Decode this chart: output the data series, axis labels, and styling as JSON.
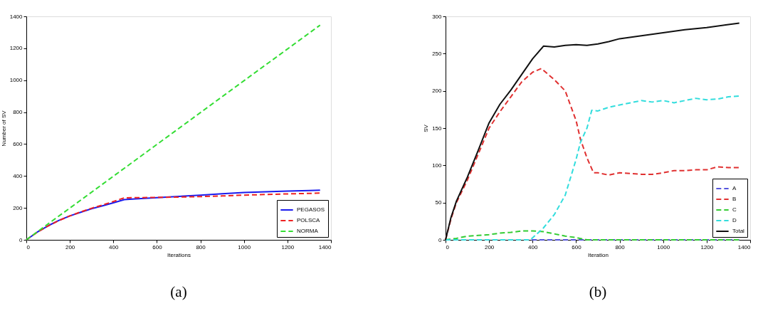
{
  "chart_data": [
    {
      "type": "line",
      "xlabel": "Iterations",
      "ylabel": "Number of SV",
      "annotations": [
        "(a)"
      ],
      "xlim": [
        0,
        1400
      ],
      "ylim": [
        0,
        1400
      ],
      "xticks": [
        0,
        200,
        400,
        600,
        800,
        1000,
        1200,
        1400
      ],
      "yticks": [
        0,
        200,
        400,
        600,
        800,
        1000,
        1200,
        1400
      ],
      "grid": false,
      "legend": "bottom right",
      "series": [
        {
          "name": "PEGASOS",
          "color": "#1a1aee",
          "line_style": "solid",
          "x": [
            0,
            50,
            100,
            150,
            200,
            250,
            300,
            350,
            400,
            450,
            500,
            600,
            700,
            800,
            900,
            1000,
            1100,
            1200,
            1300,
            1350
          ],
          "values": [
            0,
            48,
            88,
            122,
            150,
            173,
            195,
            213,
            232,
            252,
            256,
            264,
            272,
            280,
            289,
            296,
            301,
            305,
            309,
            311
          ]
        },
        {
          "name": "POLSCA",
          "color": "#ee2222",
          "line_style": "dashed",
          "x": [
            0,
            50,
            100,
            150,
            200,
            250,
            300,
            350,
            400,
            450,
            500,
            600,
            700,
            800,
            900,
            1000,
            1100,
            1200,
            1300,
            1350
          ],
          "values": [
            0,
            47,
            87,
            121,
            150,
            175,
            198,
            218,
            240,
            263,
            264,
            266,
            268,
            271,
            275,
            280,
            284,
            288,
            291,
            293
          ]
        },
        {
          "name": "NORMA",
          "color": "#33dd33",
          "line_style": "dashed",
          "x": [
            0,
            450,
            900,
            1350
          ],
          "values": [
            0,
            448,
            897,
            1345
          ]
        }
      ]
    },
    {
      "type": "line",
      "xlabel": "Iteration",
      "ylabel": "SV",
      "annotations": [
        "(b)"
      ],
      "xlim": [
        0,
        1400
      ],
      "ylim": [
        0,
        300
      ],
      "xticks": [
        0,
        200,
        400,
        600,
        800,
        1000,
        1200,
        1400
      ],
      "yticks": [
        0,
        50,
        100,
        150,
        200,
        250,
        300
      ],
      "grid": false,
      "legend": "bottom right",
      "series": [
        {
          "name": "A",
          "color": "#5555dd",
          "line_style": "dashed",
          "x": [
            0,
            1350
          ],
          "values": [
            0,
            0
          ]
        },
        {
          "name": "B",
          "color": "#e03030",
          "line_style": "dashed",
          "x": [
            0,
            25,
            50,
            100,
            150,
            200,
            250,
            300,
            350,
            400,
            440,
            500,
            550,
            600,
            620,
            650,
            680,
            700,
            750,
            800,
            850,
            900,
            950,
            1000,
            1050,
            1100,
            1150,
            1200,
            1250,
            1300,
            1350
          ],
          "values": [
            0,
            28,
            50,
            80,
            115,
            150,
            172,
            192,
            212,
            225,
            230,
            215,
            200,
            160,
            135,
            110,
            90,
            90,
            87,
            90,
            89,
            88,
            88,
            90,
            93,
            93,
            94,
            94,
            98,
            97,
            97
          ]
        },
        {
          "name": "C",
          "color": "#33cc33",
          "line_style": "dashed",
          "x": [
            0,
            50,
            100,
            150,
            200,
            250,
            300,
            350,
            400,
            450,
            500,
            550,
            600,
            650,
            700,
            800,
            900,
            1000,
            1100,
            1200,
            1300,
            1350
          ],
          "values": [
            0,
            2,
            5,
            6,
            7,
            9,
            10,
            12,
            12,
            11,
            8,
            5,
            3,
            0,
            0,
            0,
            0,
            0,
            0,
            0,
            0,
            0
          ]
        },
        {
          "name": "D",
          "color": "#33dddd",
          "line_style": "dashed",
          "x": [
            0,
            390,
            420,
            450,
            500,
            550,
            600,
            620,
            650,
            672,
            700,
            750,
            800,
            850,
            900,
            950,
            1000,
            1050,
            1100,
            1150,
            1200,
            1250,
            1300,
            1350
          ],
          "values": [
            0,
            0,
            8,
            16,
            34,
            60,
            108,
            131,
            150,
            174,
            173,
            178,
            181,
            184,
            187,
            185,
            187,
            184,
            187,
            190,
            188,
            189,
            192,
            193
          ]
        },
        {
          "name": "Total",
          "color": "#111111",
          "line_style": "solid",
          "x": [
            0,
            25,
            50,
            100,
            150,
            200,
            250,
            300,
            350,
            400,
            450,
            500,
            550,
            600,
            650,
            700,
            750,
            800,
            900,
            1000,
            1100,
            1200,
            1300,
            1350
          ],
          "values": [
            0,
            30,
            52,
            84,
            120,
            157,
            182,
            201,
            222,
            243,
            260,
            259,
            261,
            262,
            261,
            263,
            266,
            270,
            274,
            278,
            282,
            285,
            289,
            291
          ]
        }
      ]
    }
  ]
}
